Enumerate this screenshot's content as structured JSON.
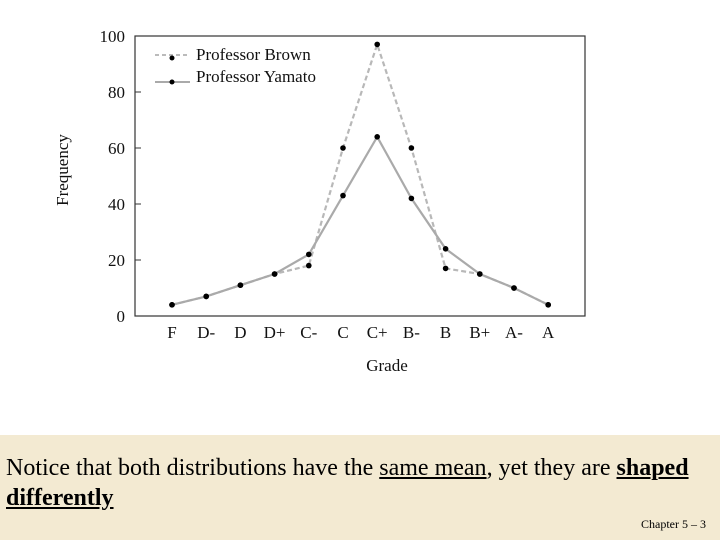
{
  "chart_data": {
    "type": "line",
    "title": "",
    "xlabel": "Grade",
    "ylabel": "Frequency",
    "ylim": [
      0,
      100
    ],
    "yticks": [
      0,
      20,
      40,
      60,
      80,
      100
    ],
    "categories": [
      "F",
      "D-",
      "D",
      "D+",
      "C-",
      "C",
      "C+",
      "B-",
      "B",
      "B+",
      "A-",
      "A"
    ],
    "legend_position": "top-left",
    "grid": false,
    "series": [
      {
        "name": "Professor Brown",
        "style": "dashed",
        "color": "#b8b8b8",
        "values": [
          4,
          7,
          11,
          15,
          18,
          60,
          97,
          60,
          17,
          15,
          10,
          4
        ]
      },
      {
        "name": "Professor Yamato",
        "style": "solid",
        "color": "#aaaaaa",
        "values": [
          4,
          7,
          11,
          15,
          22,
          43,
          64,
          42,
          24,
          15,
          10,
          4
        ]
      }
    ]
  },
  "note": {
    "part1": "Notice that both distributions have the ",
    "emphasis1": "same mean",
    "part2": ", yet they are ",
    "emphasis2": "shaped differently"
  },
  "footer": {
    "slide_number": "Chapter 5 – 3"
  }
}
